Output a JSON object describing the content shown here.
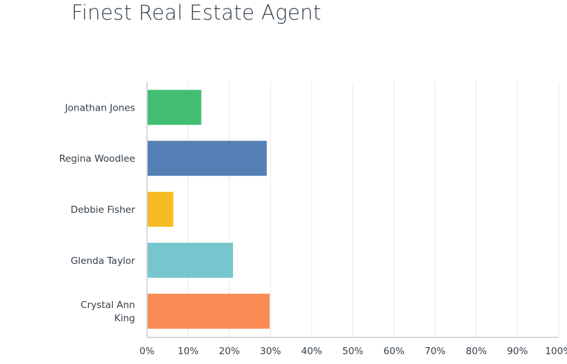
{
  "chart_data": {
    "type": "bar",
    "orientation": "horizontal",
    "title": "Finest Real Estate Agent",
    "categories": [
      [
        "Jonathan Jones"
      ],
      [
        "Regina Woodlee"
      ],
      [
        "Debbie Fisher"
      ],
      [
        "Glenda Taylor"
      ],
      [
        "Crystal Ann",
        "King"
      ]
    ],
    "values": [
      13.2,
      29.1,
      6.4,
      20.9,
      29.8
    ],
    "colors": [
      "#42be72",
      "#5580b6",
      "#f6bc24",
      "#78c6cd",
      "#fa8b54"
    ],
    "xlim": [
      0,
      100
    ],
    "xticks": [
      "0%",
      "10%",
      "20%",
      "30%",
      "40%",
      "50%",
      "60%",
      "70%",
      "80%",
      "90%",
      "100%"
    ],
    "grid": true,
    "legend": "none"
  }
}
